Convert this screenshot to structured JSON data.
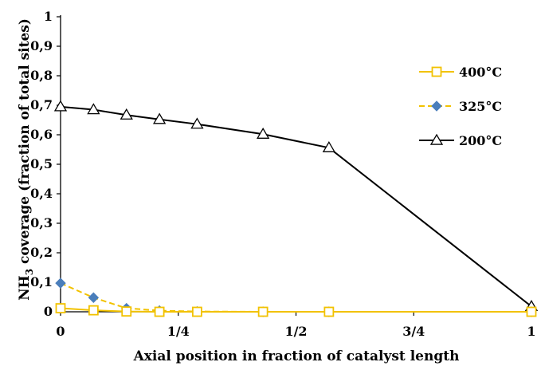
{
  "chart_data": {
    "type": "line",
    "title": "",
    "xlabel": "Axial position in fraction of catalyst length",
    "ylabel": "NH3 coverage (fraction of total sites)",
    "ylabel_main": "NH",
    "ylabel_sub": "3",
    "ylabel_rest": " coverage (fraction of total sites)",
    "xlim": [
      0,
      1
    ],
    "ylim": [
      0,
      1
    ],
    "x_ticks": [
      {
        "value": 0,
        "label": "0"
      },
      {
        "value": 0.25,
        "label": "1/4"
      },
      {
        "value": 0.5,
        "label": "1/2"
      },
      {
        "value": 0.75,
        "label": "3/4"
      },
      {
        "value": 1,
        "label": "1"
      }
    ],
    "y_ticks": [
      {
        "value": 0,
        "label": "0"
      },
      {
        "value": 0.1,
        "label": "0,1"
      },
      {
        "value": 0.2,
        "label": "0,2"
      },
      {
        "value": 0.3,
        "label": "0,3"
      },
      {
        "value": 0.4,
        "label": "0,4"
      },
      {
        "value": 0.5,
        "label": "0,5"
      },
      {
        "value": 0.6,
        "label": "0,6"
      },
      {
        "value": 0.7,
        "label": "0,7"
      },
      {
        "value": 0.8,
        "label": "0,8"
      },
      {
        "value": 0.9,
        "label": "0,9"
      },
      {
        "value": 1,
        "label": "1"
      }
    ],
    "grid": false,
    "legend_position": "right",
    "series": [
      {
        "name": "400°C",
        "color": "#F2C200",
        "marker": "square",
        "line_style": "solid",
        "x": [
          0.0,
          0.07,
          0.14,
          0.21,
          0.29,
          0.43,
          0.57,
          1.0
        ],
        "y": [
          0.012,
          0.005,
          0.001,
          0.0,
          0.0,
          0.0,
          0.0,
          0.0
        ]
      },
      {
        "name": "325°C",
        "color": "#4A7EBB",
        "line_color": "#F2C200",
        "marker": "diamond",
        "line_style": "dashed",
        "x": [
          0.0,
          0.07,
          0.14,
          0.21,
          0.29,
          0.43,
          0.57,
          1.0
        ],
        "y": [
          0.097,
          0.048,
          0.012,
          0.004,
          0.001,
          0.0,
          0.0,
          0.0
        ]
      },
      {
        "name": "200°C",
        "color": "#000000",
        "marker": "triangle",
        "line_style": "solid",
        "x": [
          0.0,
          0.07,
          0.14,
          0.21,
          0.29,
          0.43,
          0.57,
          1.0
        ],
        "y": [
          0.695,
          0.685,
          0.667,
          0.652,
          0.636,
          0.602,
          0.556,
          0.018
        ]
      }
    ]
  }
}
